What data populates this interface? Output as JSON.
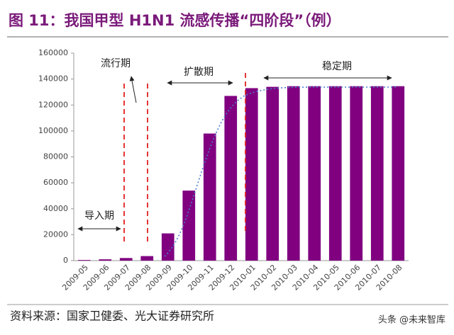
{
  "chart_data": {
    "type": "bar",
    "title": "图 11：我国甲型 H1N1 流感传播“四阶段”（例）",
    "source": "资料来源：国家卫健委、光大证券研究所",
    "watermark": "头条 @未来智库",
    "annotations": [
      "导入期",
      "流行期",
      "扩散期",
      "稳定期"
    ],
    "categories": [
      "2009-05",
      "2009-06",
      "2009-07",
      "2009-08",
      "2009-09",
      "2009-10",
      "2009-11",
      "2009-12",
      "2010-01",
      "2010-02",
      "2010-03",
      "2010-04",
      "2010-05",
      "2010-06",
      "2010-07",
      "2010-08"
    ],
    "values": [
      500,
      1000,
      2000,
      3500,
      21000,
      54000,
      98000,
      127000,
      133000,
      134000,
      134500,
      134500,
      134500,
      134500,
      134500,
      134500
    ],
    "color": "#800080",
    "ylim": [
      0,
      160000
    ],
    "yticks": [
      0,
      20000,
      40000,
      60000,
      80000,
      100000,
      120000,
      140000,
      160000
    ],
    "grid": false
  }
}
